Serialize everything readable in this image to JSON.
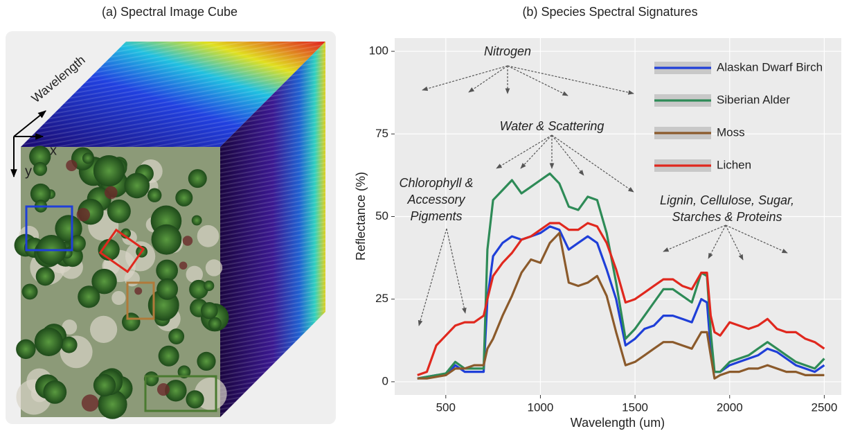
{
  "panel_a": {
    "title": "(a) Spectral Image Cube",
    "axis_wavelength": "Wavelength",
    "axis_x": "x",
    "axis_y": "y"
  },
  "chart_data": {
    "type": "line",
    "title": "(b) Species Spectral Signatures",
    "x_label": "Wavelength (um)",
    "y_label": "Reflectance (%)",
    "xlim": [
      230,
      2590
    ],
    "ylim": [
      -4,
      104
    ],
    "xticks": [
      500,
      1000,
      1500,
      2000,
      2500
    ],
    "yticks": [
      0,
      25,
      50,
      75,
      100
    ],
    "grid": true,
    "legend": "top-right",
    "x": [
      350,
      400,
      450,
      500,
      550,
      600,
      650,
      700,
      720,
      750,
      800,
      850,
      900,
      950,
      1000,
      1050,
      1100,
      1150,
      1200,
      1250,
      1300,
      1350,
      1400,
      1450,
      1500,
      1550,
      1600,
      1650,
      1700,
      1750,
      1800,
      1850,
      1880,
      1900,
      1920,
      1950,
      2000,
      2050,
      2100,
      2150,
      2200,
      2250,
      2300,
      2350,
      2400,
      2450,
      2500
    ],
    "series": [
      {
        "name": "Alaskan Dwarf Birch",
        "color": "#1f3fd8",
        "values": [
          1,
          1.5,
          2,
          2,
          5,
          3,
          3,
          3,
          25,
          38,
          42,
          44,
          43,
          44,
          45,
          47,
          46,
          40,
          42,
          44,
          42,
          34,
          25,
          11,
          13,
          16,
          17,
          20,
          20,
          19,
          18,
          25,
          24,
          10,
          3,
          3,
          5,
          6,
          7,
          8,
          10,
          9,
          7,
          5,
          4,
          3,
          5
        ]
      },
      {
        "name": "Siberian Alder",
        "color": "#2e8b57",
        "values": [
          1,
          1.5,
          2,
          2.5,
          6,
          4,
          4,
          4,
          40,
          55,
          58,
          61,
          57,
          59,
          61,
          63,
          60,
          53,
          52,
          56,
          55,
          45,
          30,
          13,
          16,
          20,
          24,
          28,
          28,
          26,
          24,
          33,
          32,
          15,
          3,
          3,
          6,
          7,
          8,
          10,
          12,
          10,
          8,
          6,
          5,
          4,
          7
        ]
      },
      {
        "name": "Moss",
        "color": "#8b5a2b",
        "values": [
          1,
          1,
          1.5,
          2,
          4,
          4,
          5,
          5,
          10,
          13,
          20,
          26,
          33,
          37,
          36,
          42,
          45,
          30,
          29,
          30,
          32,
          26,
          15,
          5,
          6,
          8,
          10,
          12,
          12,
          11,
          10,
          15,
          15,
          8,
          1,
          2,
          3,
          3,
          4,
          4,
          5,
          4,
          3,
          3,
          2,
          2,
          2
        ]
      },
      {
        "name": "Lichen",
        "color": "#e0281e",
        "values": [
          2,
          3,
          11,
          14,
          17,
          18,
          18,
          20,
          25,
          32,
          36,
          39,
          43,
          44,
          46,
          48,
          48,
          46,
          46,
          48,
          47,
          42,
          34,
          24,
          25,
          27,
          29,
          31,
          31,
          29,
          28,
          33,
          33,
          20,
          15,
          14,
          18,
          17,
          16,
          17,
          19,
          16,
          15,
          15,
          13,
          12,
          10
        ]
      }
    ],
    "annotations": [
      [
        "Nitrogen"
      ],
      [
        "Water & Scattering"
      ],
      [
        "Chlorophyll &",
        "Accessory",
        "Pigments"
      ],
      [
        "Lignin, Cellulose, Sugar,",
        "Starches & Proteins"
      ]
    ]
  }
}
